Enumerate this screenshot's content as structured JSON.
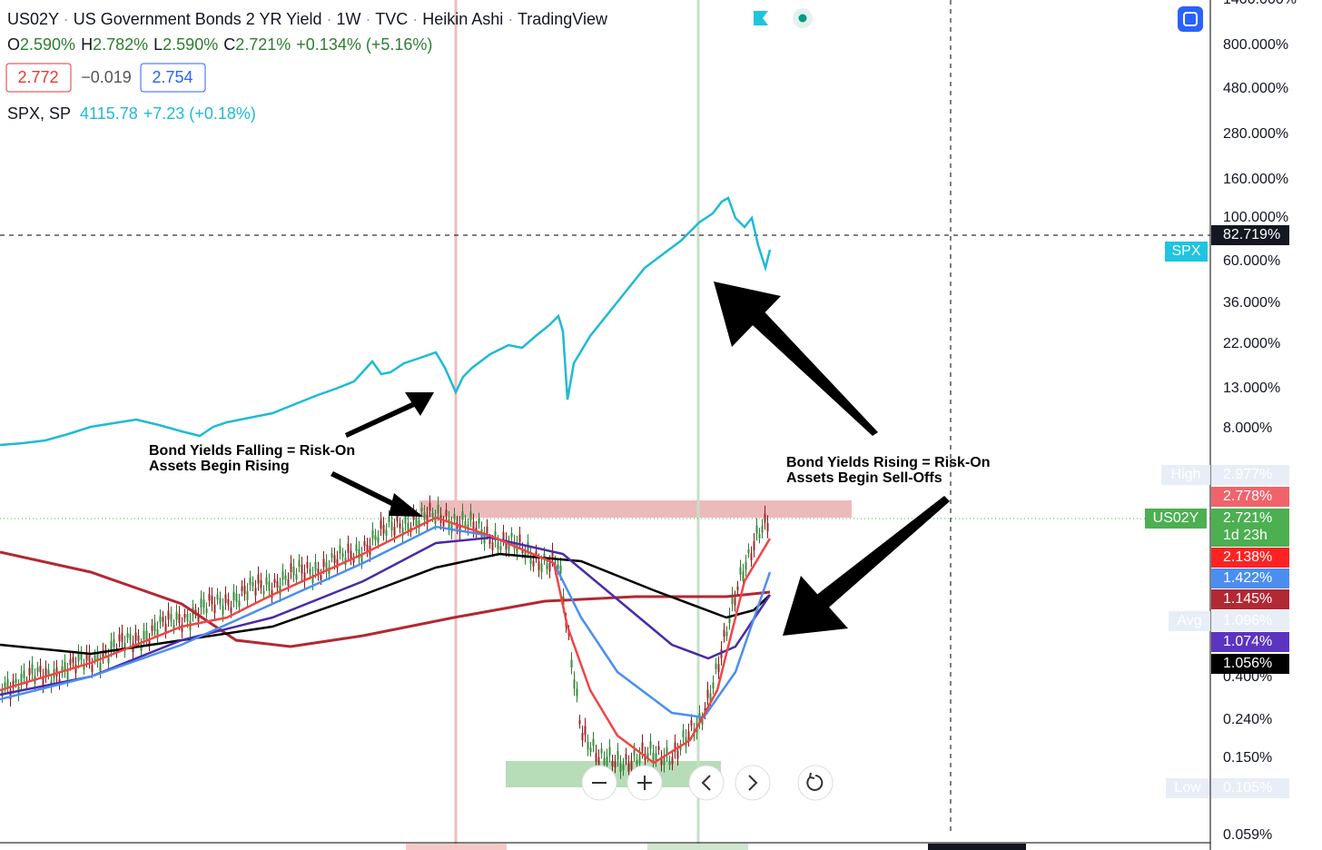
{
  "header": {
    "symbol": "US02Y",
    "name": "US Government Bonds 2 YR Yield",
    "interval": "1W",
    "exchange": "TVC",
    "chart_style": "Heikin Ashi",
    "source": "TradingView"
  },
  "ohlc": {
    "o_label": "O",
    "o": "2.590%",
    "h_label": "H",
    "h": "2.782%",
    "l_label": "L",
    "l": "2.590%",
    "c_label": "C",
    "c": "2.721%",
    "change": "+0.134% (+5.16%)"
  },
  "quote": {
    "bid": "2.772",
    "spread": "−0.019",
    "ask": "2.754"
  },
  "compare": {
    "symbol": "SPX, SP",
    "value": "4115.78",
    "change": "+7.23 (+0.18%)"
  },
  "annotations": [
    {
      "lines": [
        "Bond Yields Falling = Risk-On",
        "Assets Begin Rising"
      ]
    },
    {
      "lines": [
        "Bond Yields Rising = Risk-On",
        "Assets Begin Sell-Offs"
      ]
    }
  ],
  "price_axis": {
    "ticks": [
      "1400.000%",
      "800.000%",
      "480.000%",
      "280.000%",
      "160.000%",
      "100.000%",
      "60.000%",
      "36.000%",
      "22.000%",
      "13.000%",
      "8.000%",
      "0.400%",
      "0.240%",
      "0.150%",
      "0.059%"
    ]
  },
  "price_labels": {
    "crosshair": "82.719%",
    "spx_tag": "SPX",
    "high_tag": "High",
    "high": "2.977%",
    "bid": "2.778%",
    "symbol_tag": "US02Y",
    "last": "2.721%",
    "countdown": "1d 23h",
    "ma_red": "2.138%",
    "ma_blue": "1.422%",
    "ma_darkred": "1.145%",
    "avg_tag": "Avg",
    "avg": "1.096%",
    "ma_purple": "1.074%",
    "ma_black": "1.056%",
    "low_tag": "Low",
    "low": "0.105%"
  }
}
